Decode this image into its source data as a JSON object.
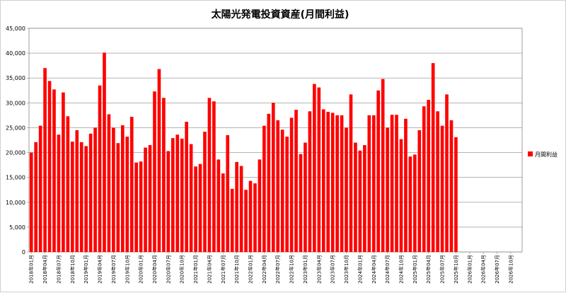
{
  "chart_data": {
    "type": "bar",
    "title": "太陽光発電投資資産(月間利益)",
    "ylim": [
      0,
      45000
    ],
    "yticks": [
      "0",
      "5,000",
      "10,000",
      "15,000",
      "20,000",
      "25,000",
      "30,000",
      "35,000",
      "40,000",
      "45,000"
    ],
    "grid": true,
    "legend_position": "right",
    "bar_color": "#ff0000",
    "series": [
      {
        "name": "月間利益",
        "values": [
          20000,
          22100,
          25400,
          37000,
          34400,
          32700,
          23600,
          32100,
          27300,
          22200,
          24500,
          22100,
          21300,
          23800,
          25000,
          33500,
          40100,
          27700,
          25000,
          21900,
          25500,
          23200,
          27200,
          18000,
          18200,
          21000,
          21500,
          32300,
          36800,
          31000,
          20300,
          22900,
          23600,
          22800,
          26200,
          21700,
          17200,
          17700,
          24200,
          31000,
          30300,
          18600,
          15800,
          23500,
          12700,
          18100,
          17300,
          12500,
          14300,
          13800,
          18600,
          25400,
          27800,
          30000,
          26500,
          24600,
          23200,
          27000,
          28600,
          19700,
          22000,
          28300,
          33800,
          33100,
          28700,
          28200,
          28000,
          27500,
          27500,
          25000,
          31700,
          22000,
          20400,
          21500,
          27500,
          27500,
          32500,
          34800,
          25000,
          27600,
          27600,
          22700,
          26800,
          19200,
          19600,
          24500,
          29300,
          30600,
          38000,
          28300,
          25400,
          31700,
          26500,
          23100,
          null,
          null,
          null,
          null,
          null,
          null,
          null,
          null,
          null,
          null,
          null,
          null,
          null,
          null
        ]
      }
    ],
    "x_labels": [
      "2018年01月",
      "2018年04月",
      "2018年07月",
      "2018年10月",
      "2019年01月",
      "2019年04月",
      "2019年07月",
      "2019年10月",
      "2020年01月",
      "2020年04月",
      "2020年07月",
      "2020年10月",
      "2021年01月",
      "2021年04月",
      "2021年07月",
      "2021年10月",
      "2022年01月",
      "2022年04月",
      "2022年07月",
      "2022年10月",
      "2023年01月",
      "2023年04月",
      "2023年07月",
      "2023年10月",
      "2024年01月",
      "2024年04月",
      "2024年07月",
      "2024年10月",
      "2025年01月",
      "2025年04月",
      "2025年07月",
      "2025年10月",
      "2026年01月",
      "2026年04月",
      "2026年07月",
      "2026年10月"
    ]
  }
}
